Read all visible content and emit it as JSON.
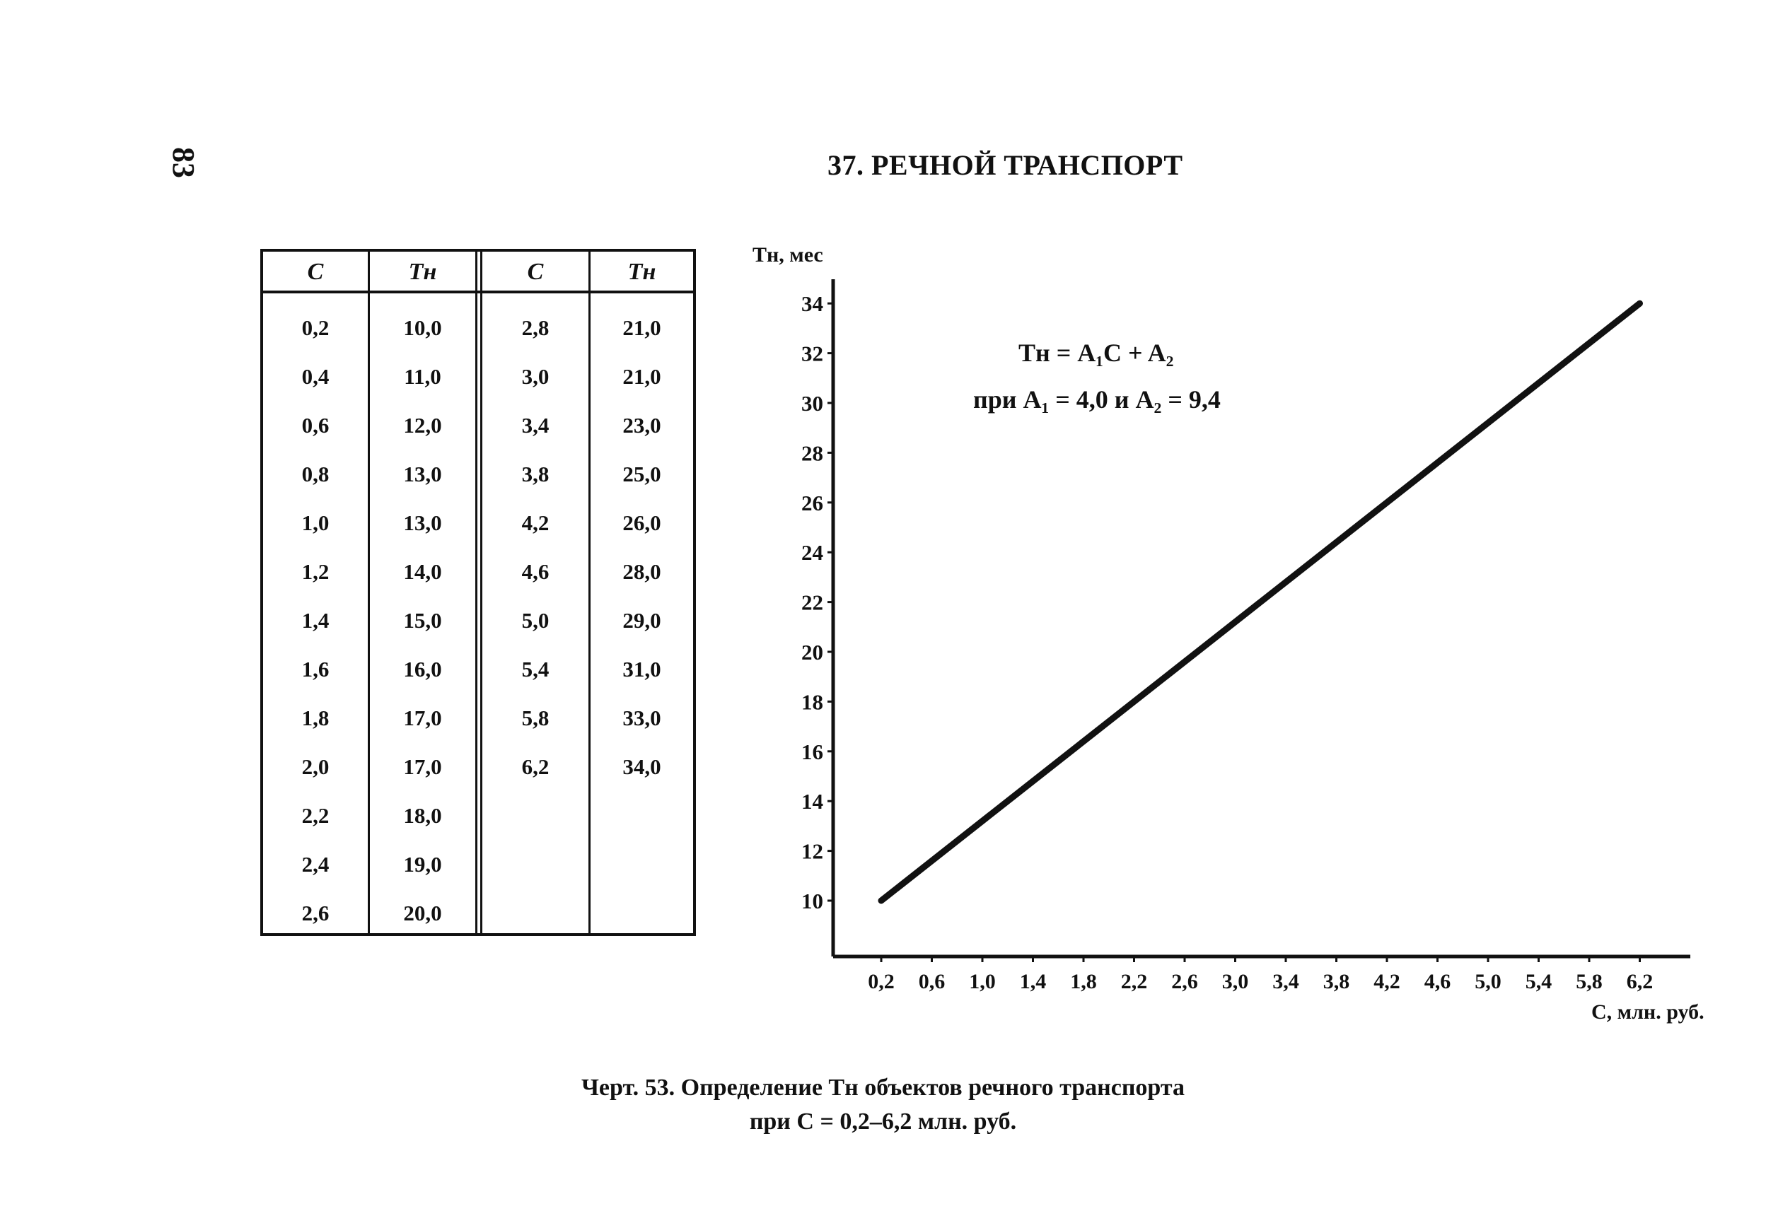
{
  "page_number": "83",
  "heading": "37. РЕЧНОЙ ТРАНСПОРТ",
  "table": {
    "headers": [
      "C",
      "Tн",
      "C",
      "Tн"
    ],
    "left": [
      [
        "0,2",
        "10,0"
      ],
      [
        "0,4",
        "11,0"
      ],
      [
        "0,6",
        "12,0"
      ],
      [
        "0,8",
        "13,0"
      ],
      [
        "1,0",
        "13,0"
      ],
      [
        "1,2",
        "14,0"
      ],
      [
        "1,4",
        "15,0"
      ],
      [
        "1,6",
        "16,0"
      ],
      [
        "1,8",
        "17,0"
      ],
      [
        "2,0",
        "17,0"
      ],
      [
        "2,2",
        "18,0"
      ],
      [
        "2,4",
        "19,0"
      ],
      [
        "2,6",
        "20,0"
      ]
    ],
    "right": [
      [
        "2,8",
        "21,0"
      ],
      [
        "3,0",
        "21,0"
      ],
      [
        "3,4",
        "23,0"
      ],
      [
        "3,8",
        "25,0"
      ],
      [
        "4,2",
        "26,0"
      ],
      [
        "4,6",
        "28,0"
      ],
      [
        "5,0",
        "29,0"
      ],
      [
        "5,4",
        "31,0"
      ],
      [
        "5,8",
        "33,0"
      ],
      [
        "6,2",
        "34,0"
      ]
    ]
  },
  "chart_data": {
    "type": "line",
    "ylabel": "Tн, мес",
    "xlabel": "C, млн. руб.",
    "x_ticks": [
      "0,2",
      "0,6",
      "1,0",
      "1,4",
      "1,8",
      "2,2",
      "2,6",
      "3,0",
      "3,4",
      "3,8",
      "4,2",
      "4,6",
      "5,0",
      "5,4",
      "5,8",
      "6,2"
    ],
    "y_ticks": [
      10,
      12,
      14,
      16,
      18,
      20,
      22,
      24,
      26,
      28,
      30,
      32,
      34
    ],
    "xlim": [
      0.2,
      6.2
    ],
    "ylim": [
      10,
      34
    ],
    "series": [
      {
        "x": [
          0.2,
          6.2
        ],
        "y": [
          10.0,
          34.0
        ]
      }
    ],
    "formula_line1": "Tн = A₁C + A₂",
    "formula_line2": "при A₁ = 4,0 и A₂ = 9,4",
    "grid": false
  },
  "caption": {
    "line1": "Черт. 53. Определение Tн объектов речного транспорта",
    "line2": "при C = 0,2–6,2 млн. руб."
  }
}
